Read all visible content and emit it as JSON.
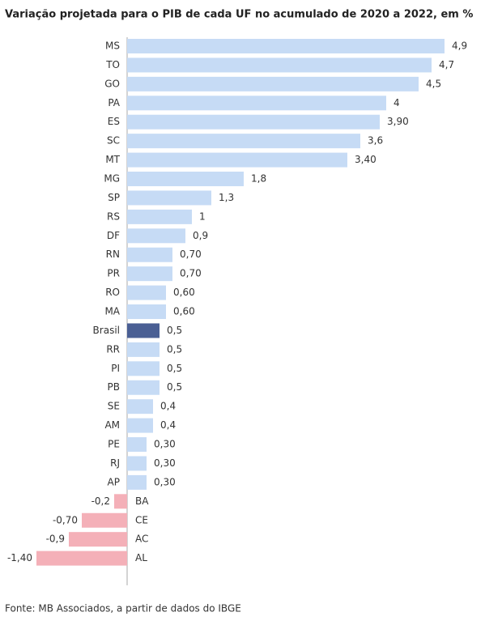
{
  "chart_data": {
    "type": "bar",
    "orientation": "horizontal",
    "title": "Variação projetada para o PIB de cada UF no acumulado de 2020 a 2022, em %",
    "source": "Fonte: MB Associados, a partir de dados do IBGE",
    "categories": [
      "MS",
      "TO",
      "GO",
      "PA",
      "ES",
      "SC",
      "MT",
      "MG",
      "SP",
      "RS",
      "DF",
      "RN",
      "PR",
      "RO",
      "MA",
      "Brasil",
      "RR",
      "PI",
      "PB",
      "SE",
      "AM",
      "PE",
      "RJ",
      "AP",
      "BA",
      "CE",
      "AC",
      "AL"
    ],
    "values": [
      4.9,
      4.7,
      4.5,
      4,
      3.9,
      3.6,
      3.4,
      1.8,
      1.3,
      1,
      0.9,
      0.7,
      0.7,
      0.6,
      0.6,
      0.5,
      0.5,
      0.5,
      0.5,
      0.4,
      0.4,
      0.3,
      0.3,
      0.3,
      -0.2,
      -0.7,
      -0.9,
      -1.4
    ],
    "value_labels": [
      "4,9",
      "4,7",
      "4,5",
      "4",
      "3,90",
      "3,6",
      "3,40",
      "1,8",
      "1,3",
      "1",
      "0,9",
      "0,70",
      "0,70",
      "0,60",
      "0,60",
      "0,5",
      "0,5",
      "0,5",
      "0,5",
      "0,4",
      "0,4",
      "0,30",
      "0,30",
      "0,30",
      "-0,2",
      "-0,70",
      "-0,9",
      "-1,40"
    ],
    "colors": [
      "#c6dbf5",
      "#c6dbf5",
      "#c6dbf5",
      "#c6dbf5",
      "#c6dbf5",
      "#c6dbf5",
      "#c6dbf5",
      "#c6dbf5",
      "#c6dbf5",
      "#c6dbf5",
      "#c6dbf5",
      "#c6dbf5",
      "#c6dbf5",
      "#c6dbf5",
      "#c6dbf5",
      "#4a5f94",
      "#c6dbf5",
      "#c6dbf5",
      "#c6dbf5",
      "#c6dbf5",
      "#c6dbf5",
      "#c6dbf5",
      "#c6dbf5",
      "#c6dbf5",
      "#f4b0b8",
      "#f4b0b8",
      "#f4b0b8",
      "#f4b0b8"
    ],
    "xlim": [
      -1.4,
      4.9
    ]
  }
}
